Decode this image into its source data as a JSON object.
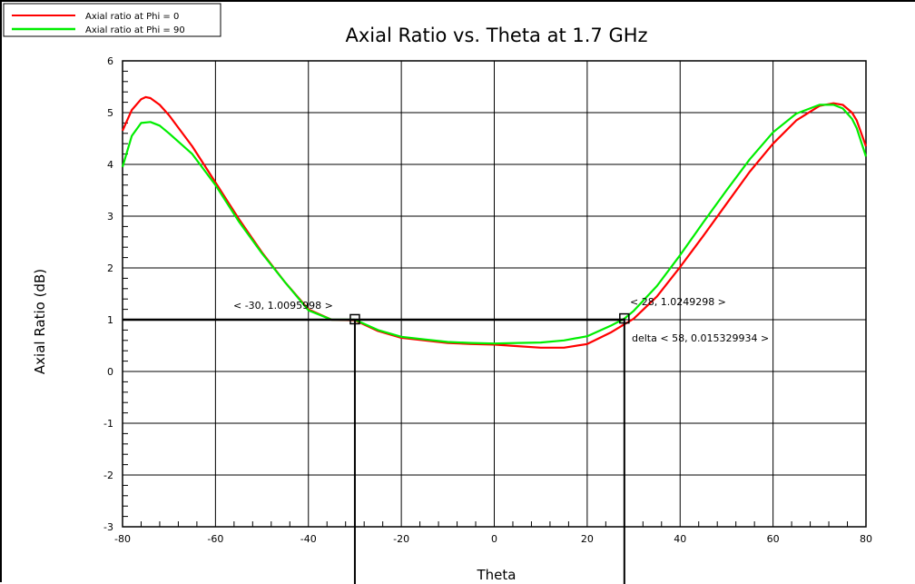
{
  "chart_data": {
    "type": "line",
    "title": "Axial Ratio vs. Theta at 1.7 GHz",
    "xlabel": "Theta",
    "ylabel": "Axial Ratio (dB)",
    "xlim": [
      -80,
      80
    ],
    "ylim": [
      -3,
      6
    ],
    "xticks": [
      -80,
      -60,
      -40,
      -20,
      0,
      20,
      40,
      60,
      80
    ],
    "yticks": [
      -3,
      -2,
      -1,
      0,
      1,
      2,
      3,
      4,
      5,
      6
    ],
    "grid": true,
    "legend_placement": "top-left",
    "series": [
      {
        "name": "Axial ratio at Phi = 0",
        "color": "#ff0000",
        "x": [
          -80,
          -78,
          -76,
          -75,
          -74,
          -72,
          -70,
          -65,
          -60,
          -55,
          -50,
          -45,
          -40,
          -35,
          -30,
          -25,
          -20,
          -15,
          -10,
          -5,
          0,
          5,
          10,
          15,
          20,
          25,
          28,
          30,
          35,
          40,
          45,
          50,
          55,
          60,
          65,
          70,
          73,
          75,
          77,
          78,
          80
        ],
        "y": [
          4.65,
          5.05,
          5.26,
          5.3,
          5.28,
          5.15,
          4.95,
          4.35,
          3.65,
          2.95,
          2.3,
          1.72,
          1.2,
          1.0,
          0.99,
          0.78,
          0.65,
          0.6,
          0.55,
          0.53,
          0.52,
          0.49,
          0.46,
          0.46,
          0.53,
          0.75,
          0.91,
          1.02,
          1.45,
          2.02,
          2.62,
          3.24,
          3.86,
          4.4,
          4.85,
          5.13,
          5.18,
          5.15,
          5.0,
          4.85,
          4.35
        ]
      },
      {
        "name": "Axial ratio at Phi = 90",
        "color": "#00ee00",
        "x": [
          -80,
          -78,
          -76,
          -74,
          -72,
          -70,
          -65,
          -60,
          -55,
          -50,
          -45,
          -40,
          -35,
          -30,
          -25,
          -20,
          -15,
          -10,
          -5,
          0,
          5,
          10,
          15,
          20,
          25,
          28,
          30,
          35,
          40,
          45,
          50,
          55,
          60,
          65,
          70,
          73,
          75,
          77,
          78,
          80
        ],
        "y": [
          3.95,
          4.55,
          4.8,
          4.82,
          4.75,
          4.6,
          4.2,
          3.6,
          2.9,
          2.28,
          1.72,
          1.18,
          1.0,
          1.0,
          0.8,
          0.67,
          0.62,
          0.57,
          0.55,
          0.54,
          0.55,
          0.56,
          0.6,
          0.68,
          0.88,
          1.02,
          1.17,
          1.65,
          2.25,
          2.88,
          3.5,
          4.1,
          4.62,
          4.98,
          5.15,
          5.15,
          5.08,
          4.88,
          4.7,
          4.15
        ]
      }
    ],
    "markers": [
      {
        "x": -30,
        "y": 1.0095998,
        "label": "< -30, 1.0095998 >"
      },
      {
        "x": 28,
        "y": 1.0249298,
        "label": "< 28, 1.0249298 >"
      }
    ],
    "delta_label": "delta < 58, 0.015329934 >",
    "reference_level": 1
  }
}
